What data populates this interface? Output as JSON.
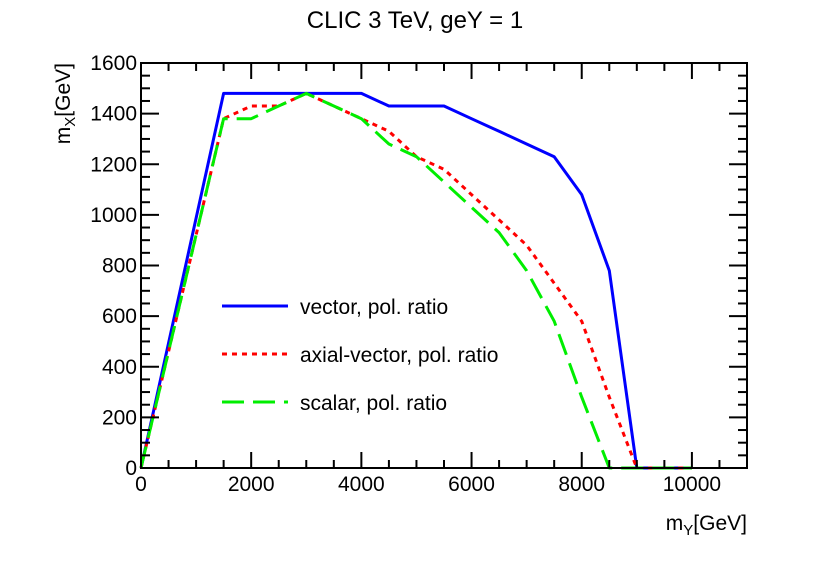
{
  "chart_data": {
    "type": "line",
    "title": "CLIC 3 TeV, geY = 1",
    "xlabel": {
      "main": "m",
      "sub": "Y",
      "unit": "[GeV]"
    },
    "ylabel": {
      "main": "m",
      "sub": "X",
      "unit": "[GeV]"
    },
    "xlim": [
      0,
      11000
    ],
    "ylim": [
      0,
      1600
    ],
    "x_ticks": [
      0,
      2000,
      4000,
      6000,
      8000,
      10000
    ],
    "x_tick_labels": [
      "0",
      "2000",
      "4000",
      "6000",
      "8000",
      "10000"
    ],
    "y_ticks": [
      0,
      200,
      400,
      600,
      800,
      1000,
      1200,
      1400,
      1600
    ],
    "y_tick_labels": [
      "0",
      "200",
      "400",
      "600",
      "800",
      "1000",
      "1200",
      "1400",
      "1600"
    ],
    "legend_position": "center-left",
    "series": [
      {
        "name": "vector, pol. ratio",
        "color": "#0000ff",
        "style": "solid",
        "x": [
          0,
          1500,
          2000,
          2500,
          3000,
          4000,
          4500,
          5000,
          5500,
          6000,
          6500,
          7000,
          7500,
          8000,
          8500,
          9000,
          9500,
          10000
        ],
        "y": [
          0,
          1480,
          1480,
          1480,
          1480,
          1480,
          1430,
          1430,
          1430,
          1380,
          1330,
          1280,
          1230,
          1080,
          780,
          0,
          0,
          0
        ]
      },
      {
        "name": "axial-vector, pol. ratio",
        "color": "#ff0000",
        "style": "dotted",
        "x": [
          0,
          1500,
          2000,
          2500,
          3000,
          3500,
          4000,
          4500,
          5000,
          5500,
          6000,
          6500,
          7000,
          7500,
          8000,
          8500,
          9000,
          9500,
          10000
        ],
        "y": [
          0,
          1380,
          1430,
          1430,
          1480,
          1430,
          1380,
          1330,
          1230,
          1180,
          1080,
          980,
          880,
          730,
          580,
          280,
          0,
          0,
          0
        ]
      },
      {
        "name": "scalar, pol. ratio",
        "color": "#00ee00",
        "style": "dashed",
        "x": [
          0,
          1500,
          2000,
          2500,
          3000,
          3500,
          4000,
          4500,
          5000,
          5500,
          6000,
          6500,
          7000,
          7500,
          8000,
          8500,
          9000,
          9500,
          10000
        ],
        "y": [
          0,
          1380,
          1380,
          1430,
          1480,
          1430,
          1380,
          1280,
          1230,
          1130,
          1030,
          930,
          780,
          580,
          280,
          0,
          0,
          0,
          0
        ]
      }
    ]
  }
}
